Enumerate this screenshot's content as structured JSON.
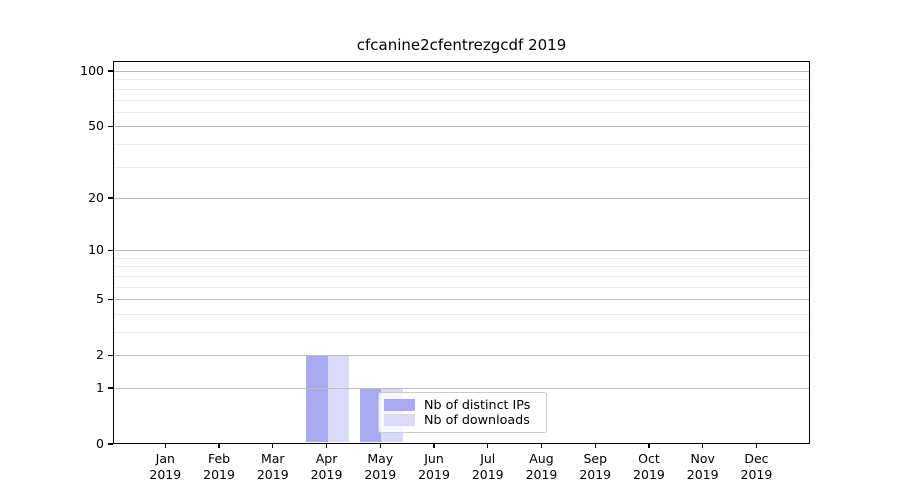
{
  "title": "cfcanine2cfentrezgcdf 2019",
  "chart_data": {
    "type": "bar",
    "title": "cfcanine2cfentrezgcdf 2019",
    "categories": [
      "Jan",
      "Feb",
      "Mar",
      "Apr",
      "May",
      "Jun",
      "Jul",
      "Aug",
      "Sep",
      "Oct",
      "Nov",
      "Dec"
    ],
    "category_year": "2019",
    "series": [
      {
        "name": "Nb of distinct IPs",
        "color": "#a9a9f2",
        "values": [
          0,
          0,
          0,
          2,
          1,
          0,
          0,
          0,
          0,
          0,
          0,
          0
        ]
      },
      {
        "name": "Nb of downloads",
        "color": "#d9d9fa",
        "values": [
          0,
          0,
          0,
          2,
          1,
          0,
          0,
          0,
          0,
          0,
          0,
          0
        ]
      }
    ],
    "yscale": "log1p",
    "ylim": [
      0,
      112
    ],
    "yticks_major": [
      0,
      1,
      2,
      5,
      10,
      20,
      50,
      100
    ],
    "yticks_minor": [
      3,
      4,
      6,
      7,
      8,
      9,
      30,
      40,
      60,
      70,
      80,
      90
    ],
    "grid": "horizontal",
    "legend_position": "lower-center-inside",
    "bar_group": "side-by-side"
  }
}
